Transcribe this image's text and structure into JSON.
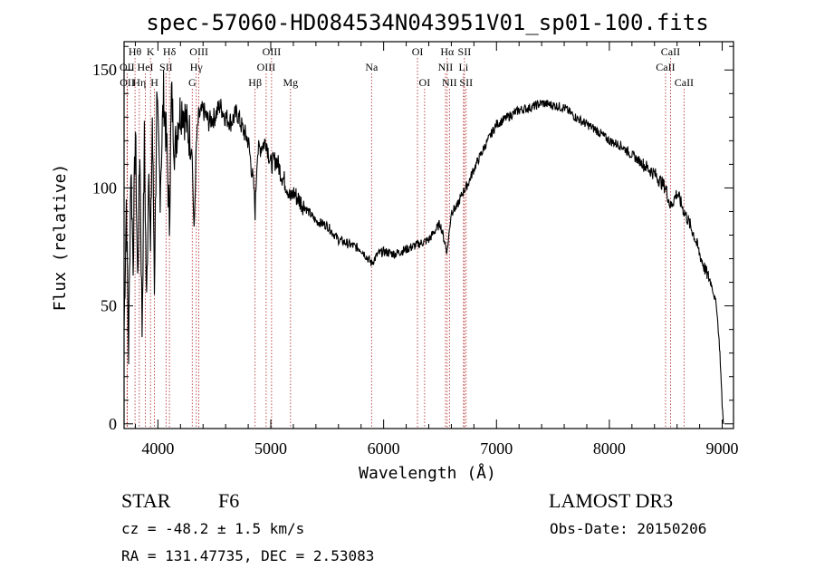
{
  "chart_data": {
    "type": "line",
    "title": "spec-57060-HD084534N043951V01_sp01-100.fits",
    "xlabel": "Wavelength (Å)",
    "ylabel": "Flux (relative)",
    "xlim": [
      3700,
      9100
    ],
    "ylim": [
      -2,
      162
    ],
    "xticks": [
      4000,
      5000,
      6000,
      7000,
      8000,
      9000
    ],
    "yticks": [
      0,
      50,
      100,
      150
    ],
    "series": [
      {
        "name": "spectrum",
        "x": [
          3700,
          3720,
          3740,
          3760,
          3780,
          3800,
          3820,
          3840,
          3860,
          3880,
          3900,
          3920,
          3934,
          3950,
          3969,
          3990,
          4020,
          4050,
          4080,
          4102,
          4120,
          4150,
          4180,
          4220,
          4260,
          4300,
          4320,
          4340,
          4360,
          4400,
          4450,
          4500,
          4550,
          4600,
          4650,
          4700,
          4750,
          4800,
          4850,
          4861,
          4880,
          4920,
          4960,
          5000,
          5050,
          5100,
          5150,
          5175,
          5200,
          5300,
          5400,
          5500,
          5600,
          5700,
          5800,
          5893,
          5950,
          6000,
          6100,
          6200,
          6300,
          6400,
          6500,
          6563,
          6600,
          6650,
          6700,
          6750,
          6800,
          6900,
          7000,
          7100,
          7200,
          7300,
          7400,
          7500,
          7600,
          7700,
          7800,
          7900,
          8000,
          8100,
          8200,
          8300,
          8400,
          8500,
          8542,
          8600,
          8662,
          8700,
          8750,
          8800,
          8850,
          8900,
          8950,
          8980,
          9000,
          9010
        ],
        "values": [
          40,
          95,
          30,
          110,
          70,
          125,
          60,
          118,
          40,
          120,
          50,
          115,
          70,
          130,
          60,
          135,
          100,
          140,
          115,
          85,
          140,
          115,
          130,
          135,
          125,
          120,
          80,
          118,
          130,
          133,
          128,
          130,
          135,
          130,
          128,
          132,
          125,
          120,
          100,
          90,
          115,
          118,
          120,
          110,
          112,
          105,
          100,
          95,
          98,
          92,
          86,
          84,
          78,
          76,
          74,
          68,
          72,
          73,
          72,
          74,
          76,
          78,
          85,
          73,
          90,
          92,
          98,
          102,
          108,
          118,
          127,
          130,
          133,
          134,
          136,
          135,
          134,
          130,
          127,
          124,
          120,
          118,
          114,
          110,
          106,
          100,
          92,
          98,
          90,
          86,
          80,
          72,
          65,
          60,
          50,
          30,
          8,
          0
        ]
      }
    ],
    "lines": [
      {
        "label": "Hθ",
        "wave": 3797,
        "row": 1
      },
      {
        "label": "OII",
        "wave": 3727,
        "row": 2
      },
      {
        "label": "OII",
        "wave": 3729,
        "row": 3
      },
      {
        "label": "K",
        "wave": 3934,
        "row": 1
      },
      {
        "label": "HeI",
        "wave": 3889,
        "row": 2
      },
      {
        "label": "Hη",
        "wave": 3835,
        "row": 3
      },
      {
        "label": "Hδ",
        "wave": 4102,
        "row": 1
      },
      {
        "label": "SII",
        "wave": 4072,
        "row": 2
      },
      {
        "label": "H",
        "wave": 3969,
        "row": 3
      },
      {
        "label": "OIII",
        "wave": 4363,
        "row": 1
      },
      {
        "label": "Hγ",
        "wave": 4340,
        "row": 2
      },
      {
        "label": "G",
        "wave": 4304,
        "row": 3
      },
      {
        "label": "OIII",
        "wave": 5007,
        "row": 1
      },
      {
        "label": "OIII",
        "wave": 4959,
        "row": 2
      },
      {
        "label": "Hβ",
        "wave": 4861,
        "row": 3
      },
      {
        "label": "Mg",
        "wave": 5175,
        "row": 3
      },
      {
        "label": "Na",
        "wave": 5893,
        "row": 2
      },
      {
        "label": "OI",
        "wave": 6300,
        "row": 1
      },
      {
        "label": "OI",
        "wave": 6363,
        "row": 3
      },
      {
        "label": "Hα",
        "wave": 6563,
        "row": 1
      },
      {
        "label": "NII",
        "wave": 6548,
        "row": 2
      },
      {
        "label": "NII",
        "wave": 6583,
        "row": 3
      },
      {
        "label": "SII",
        "wave": 6716,
        "row": 1
      },
      {
        "label": "Li",
        "wave": 6708,
        "row": 2
      },
      {
        "label": "SII",
        "wave": 6731,
        "row": 3
      },
      {
        "label": "CaII",
        "wave": 8542,
        "row": 1
      },
      {
        "label": "CaII",
        "wave": 8498,
        "row": 2
      },
      {
        "label": "CaII",
        "wave": 8662,
        "row": 3
      }
    ]
  },
  "info": {
    "class": "STAR",
    "subclass": "F6",
    "survey": "LAMOST DR3",
    "cz": "cz = -48.2 ± 1.5 km/s",
    "obs_date": "Obs-Date: 20150206",
    "coords": "RA = 131.47735, DEC =    2.53083"
  },
  "colors": {
    "line_marker": "#b22222",
    "spectrum": "#000000"
  }
}
